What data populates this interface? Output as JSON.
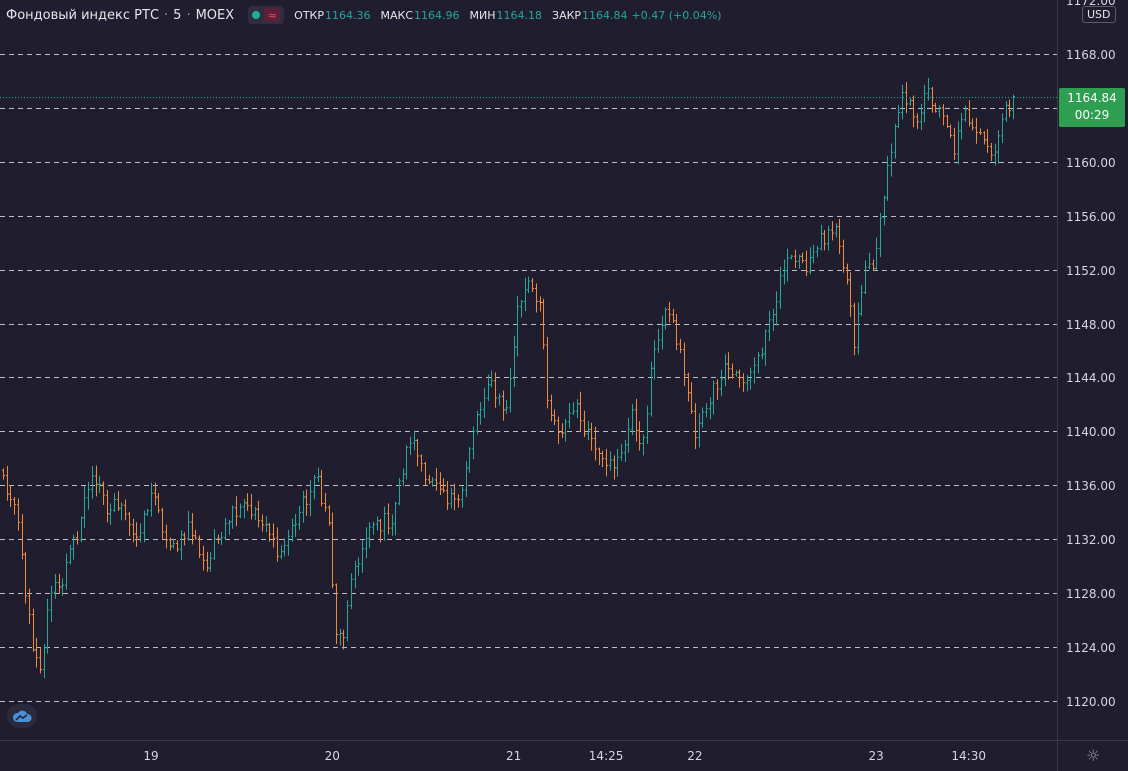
{
  "header": {
    "title": "Фондовый индекс РТС",
    "interval": "5",
    "exchange": "MOEX",
    "status_icons": [
      "live-dot-icon",
      "wave-icon"
    ],
    "ohlc": [
      {
        "label": "ОТКР",
        "value": "1164.36"
      },
      {
        "label": "МАКС",
        "value": "1164.96"
      },
      {
        "label": "МИН",
        "value": "1164.18"
      },
      {
        "label": "ЗАКР",
        "value": "1164.84"
      }
    ],
    "change": "+0.47 (+0.04%)"
  },
  "price_axis": {
    "currency": "USD",
    "top_partial_label": "1172.00",
    "last_price": "1164.84",
    "countdown": "00:29"
  },
  "colors": {
    "background": "#1f1d2e",
    "grid": "#d9d9e0",
    "up": "#26a69a",
    "down": "#ef8a3c",
    "price_tag": "#2e9e50"
  },
  "chart_data": {
    "type": "ohlc",
    "ylim": [
      1118.0,
      1172.0
    ],
    "y_ticks": [
      "1168.00",
      "1164.00",
      "1160.00",
      "1156.00",
      "1152.00",
      "1148.00",
      "1144.00",
      "1140.00",
      "1136.00",
      "1132.00",
      "1128.00",
      "1124.00",
      "1120.00"
    ],
    "y_tick_values": [
      1168,
      1164,
      1160,
      1156,
      1152,
      1148,
      1144,
      1140,
      1136,
      1132,
      1128,
      1124,
      1120
    ],
    "x_ticks": [
      {
        "label": "19",
        "index": 40
      },
      {
        "label": "20",
        "index": 89
      },
      {
        "label": "21",
        "index": 138
      },
      {
        "label": "14:25",
        "index": 163
      },
      {
        "label": "22",
        "index": 187
      },
      {
        "label": "23",
        "index": 236
      },
      {
        "label": "14:30",
        "index": 261
      }
    ],
    "last_price": 1164.84,
    "grid": true,
    "close_path": [
      [
        0,
        1136.5
      ],
      [
        4,
        1133.0
      ],
      [
        8,
        1123.5
      ],
      [
        10,
        1122.0
      ],
      [
        13,
        1128.5
      ],
      [
        16,
        1129.0
      ],
      [
        20,
        1132.5
      ],
      [
        24,
        1137.0
      ],
      [
        28,
        1134.0
      ],
      [
        32,
        1135.0
      ],
      [
        36,
        1131.5
      ],
      [
        40,
        1135.5
      ],
      [
        45,
        1131.0
      ],
      [
        50,
        1133.0
      ],
      [
        55,
        1130.0
      ],
      [
        60,
        1133.5
      ],
      [
        65,
        1135.0
      ],
      [
        70,
        1133.0
      ],
      [
        75,
        1131.0
      ],
      [
        80,
        1134.0
      ],
      [
        85,
        1136.5
      ],
      [
        88,
        1133.0
      ],
      [
        90,
        1124.5
      ],
      [
        92,
        1125.0
      ],
      [
        95,
        1130.0
      ],
      [
        100,
        1133.0
      ],
      [
        105,
        1133.5
      ],
      [
        110,
        1139.5
      ],
      [
        115,
        1136.5
      ],
      [
        120,
        1134.5
      ],
      [
        124,
        1136.0
      ],
      [
        128,
        1141.0
      ],
      [
        132,
        1143.5
      ],
      [
        136,
        1141.5
      ],
      [
        139,
        1149.0
      ],
      [
        142,
        1151.5
      ],
      [
        145,
        1149.5
      ],
      [
        147,
        1142.0
      ],
      [
        150,
        1139.5
      ],
      [
        154,
        1142.0
      ],
      [
        158,
        1140.0
      ],
      [
        162,
        1138.5
      ],
      [
        165,
        1137.0
      ],
      [
        170,
        1141.0
      ],
      [
        173,
        1139.0
      ],
      [
        176,
        1146.5
      ],
      [
        180,
        1149.0
      ],
      [
        184,
        1144.5
      ],
      [
        187,
        1139.5
      ],
      [
        190,
        1142.0
      ],
      [
        195,
        1145.0
      ],
      [
        200,
        1143.5
      ],
      [
        205,
        1146.0
      ],
      [
        208,
        1148.5
      ],
      [
        212,
        1153.5
      ],
      [
        216,
        1152.0
      ],
      [
        220,
        1154.0
      ],
      [
        225,
        1154.5
      ],
      [
        228,
        1151.0
      ],
      [
        230,
        1146.5
      ],
      [
        233,
        1152.0
      ],
      [
        236,
        1153.0
      ],
      [
        238,
        1158.0
      ],
      [
        240,
        1161.0
      ],
      [
        243,
        1164.5
      ],
      [
        247,
        1163.5
      ],
      [
        250,
        1165.0
      ],
      [
        254,
        1163.0
      ],
      [
        257,
        1161.0
      ],
      [
        260,
        1163.5
      ],
      [
        264,
        1162.5
      ],
      [
        267,
        1160.5
      ],
      [
        270,
        1163.0
      ],
      [
        273,
        1164.84
      ]
    ]
  }
}
